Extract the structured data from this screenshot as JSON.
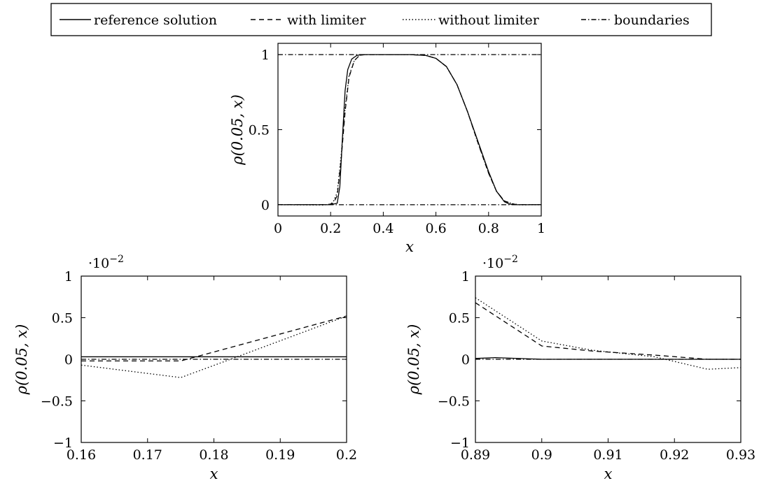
{
  "legend": {
    "entries": [
      {
        "name": "reference solution",
        "style": "solid"
      },
      {
        "name": "with limiter",
        "style": "dashed"
      },
      {
        "name": "without limiter",
        "style": "dotted"
      },
      {
        "name": "boundaries",
        "style": "dashdot"
      }
    ]
  },
  "chart_data": [
    {
      "type": "line",
      "xlabel": "x",
      "ylabel": "ρ(0.05, x)",
      "xlim": [
        0,
        1
      ],
      "ylim": [
        -0.075,
        1.075
      ],
      "xticks": [
        0,
        0.2,
        0.4,
        0.6,
        0.8,
        1
      ],
      "xticklabels": [
        "0",
        "0.2",
        "0.4",
        "0.6",
        "0.8",
        "1"
      ],
      "yticks": [
        0,
        0.5,
        1
      ],
      "yticklabels": [
        "0",
        "0.5",
        "1"
      ],
      "grid": false,
      "series": [
        {
          "name": "reference solution",
          "style": "solid",
          "x": [
            0,
            0.2,
            0.225,
            0.235,
            0.245,
            0.255,
            0.265,
            0.28,
            0.3,
            0.32,
            0.5,
            0.56,
            0.6,
            0.64,
            0.68,
            0.72,
            0.76,
            0.8,
            0.83,
            0.86,
            0.88,
            0.9,
            1
          ],
          "y": [
            0,
            0,
            0.01,
            0.12,
            0.45,
            0.76,
            0.9,
            0.97,
            0.995,
            1,
            1,
            0.995,
            0.975,
            0.92,
            0.8,
            0.62,
            0.42,
            0.22,
            0.09,
            0.02,
            0.004,
            0,
            0
          ]
        },
        {
          "name": "with limiter",
          "style": "dashed",
          "x": [
            0,
            0.19,
            0.21,
            0.225,
            0.24,
            0.255,
            0.27,
            0.29,
            0.31,
            0.33,
            0.5,
            0.56,
            0.6,
            0.64,
            0.68,
            0.72,
            0.76,
            0.8,
            0.83,
            0.86,
            0.89,
            0.91,
            1
          ],
          "y": [
            0,
            0,
            0.01,
            0.06,
            0.3,
            0.62,
            0.85,
            0.96,
            0.995,
            1,
            1,
            0.995,
            0.975,
            0.92,
            0.8,
            0.62,
            0.41,
            0.21,
            0.09,
            0.025,
            0.006,
            0,
            0
          ]
        },
        {
          "name": "without limiter",
          "style": "dotted",
          "x": [
            0,
            0.175,
            0.2,
            0.21,
            0.225,
            0.24,
            0.255,
            0.27,
            0.29,
            0.31,
            0.33,
            0.5,
            0.56,
            0.6,
            0.64,
            0.68,
            0.72,
            0.76,
            0.8,
            0.83,
            0.86,
            0.89,
            0.92,
            1
          ],
          "y": [
            0,
            -0.002,
            0.005,
            0.02,
            0.08,
            0.33,
            0.64,
            0.86,
            0.96,
            0.995,
            1,
            1,
            0.995,
            0.975,
            0.92,
            0.8,
            0.62,
            0.41,
            0.21,
            0.09,
            0.025,
            0.007,
            -0.001,
            0
          ]
        },
        {
          "name": "boundaries",
          "style": "dashdot",
          "lines": [
            {
              "x": [
                0,
                1
              ],
              "y": [
                0,
                0
              ]
            },
            {
              "x": [
                0,
                1
              ],
              "y": [
                1,
                1
              ]
            }
          ]
        }
      ]
    },
    {
      "type": "line",
      "xlabel": "x",
      "ylabel": "ρ(0.05, x)",
      "y_scale_label": "·10",
      "y_scale_exponent": "−2",
      "xlim": [
        0.16,
        0.2
      ],
      "ylim": [
        -1,
        1
      ],
      "xticks": [
        0.16,
        0.17,
        0.18,
        0.19,
        0.2
      ],
      "xticklabels": [
        "0.16",
        "0.17",
        "0.18",
        "0.19",
        "0.2"
      ],
      "yticks": [
        -1,
        -0.5,
        0,
        0.5,
        1
      ],
      "yticklabels": [
        "−1",
        "−0.5",
        "0",
        "0.5",
        "1"
      ],
      "grid": false,
      "series": [
        {
          "name": "reference solution",
          "style": "solid",
          "x": [
            0.16,
            0.2
          ],
          "y": [
            0.03,
            0.03
          ]
        },
        {
          "name": "with limiter",
          "style": "dashed",
          "x": [
            0.16,
            0.175,
            0.2
          ],
          "y": [
            -0.02,
            -0.02,
            0.52
          ]
        },
        {
          "name": "without limiter",
          "style": "dotted",
          "x": [
            0.16,
            0.175,
            0.1825,
            0.2
          ],
          "y": [
            -0.07,
            -0.22,
            0.0,
            0.52
          ]
        },
        {
          "name": "boundaries",
          "style": "dashdot",
          "x": [
            0.16,
            0.2
          ],
          "y": [
            0,
            0
          ]
        }
      ]
    },
    {
      "type": "line",
      "xlabel": "x",
      "ylabel": "ρ(0.05, x)",
      "y_scale_label": "·10",
      "y_scale_exponent": "−2",
      "xlim": [
        0.89,
        0.93
      ],
      "ylim": [
        -1,
        1
      ],
      "xticks": [
        0.89,
        0.9,
        0.91,
        0.92,
        0.93
      ],
      "xticklabels": [
        "0.89",
        "0.9",
        "0.91",
        "0.92",
        "0.93"
      ],
      "yticks": [
        -1,
        -0.5,
        0,
        0.5,
        1
      ],
      "yticklabels": [
        "−1",
        "−0.5",
        "0",
        "0.5",
        "1"
      ],
      "grid": false,
      "series": [
        {
          "name": "reference solution",
          "style": "solid",
          "x": [
            0.89,
            0.893,
            0.9,
            0.93
          ],
          "y": [
            0.01,
            0.02,
            0,
            0
          ]
        },
        {
          "name": "with limiter",
          "style": "dashed",
          "x": [
            0.89,
            0.9,
            0.9075,
            0.917,
            0.925,
            0.93
          ],
          "y": [
            0.68,
            0.16,
            0.1,
            0.05,
            0,
            0
          ]
        },
        {
          "name": "without limiter",
          "style": "dotted",
          "x": [
            0.89,
            0.9,
            0.9075,
            0.917,
            0.925,
            0.93
          ],
          "y": [
            0.74,
            0.22,
            0.11,
            0.03,
            -0.12,
            -0.1
          ]
        },
        {
          "name": "boundaries",
          "style": "dashdot",
          "x": [
            0.89,
            0.93
          ],
          "y": [
            0,
            0
          ]
        }
      ]
    }
  ]
}
